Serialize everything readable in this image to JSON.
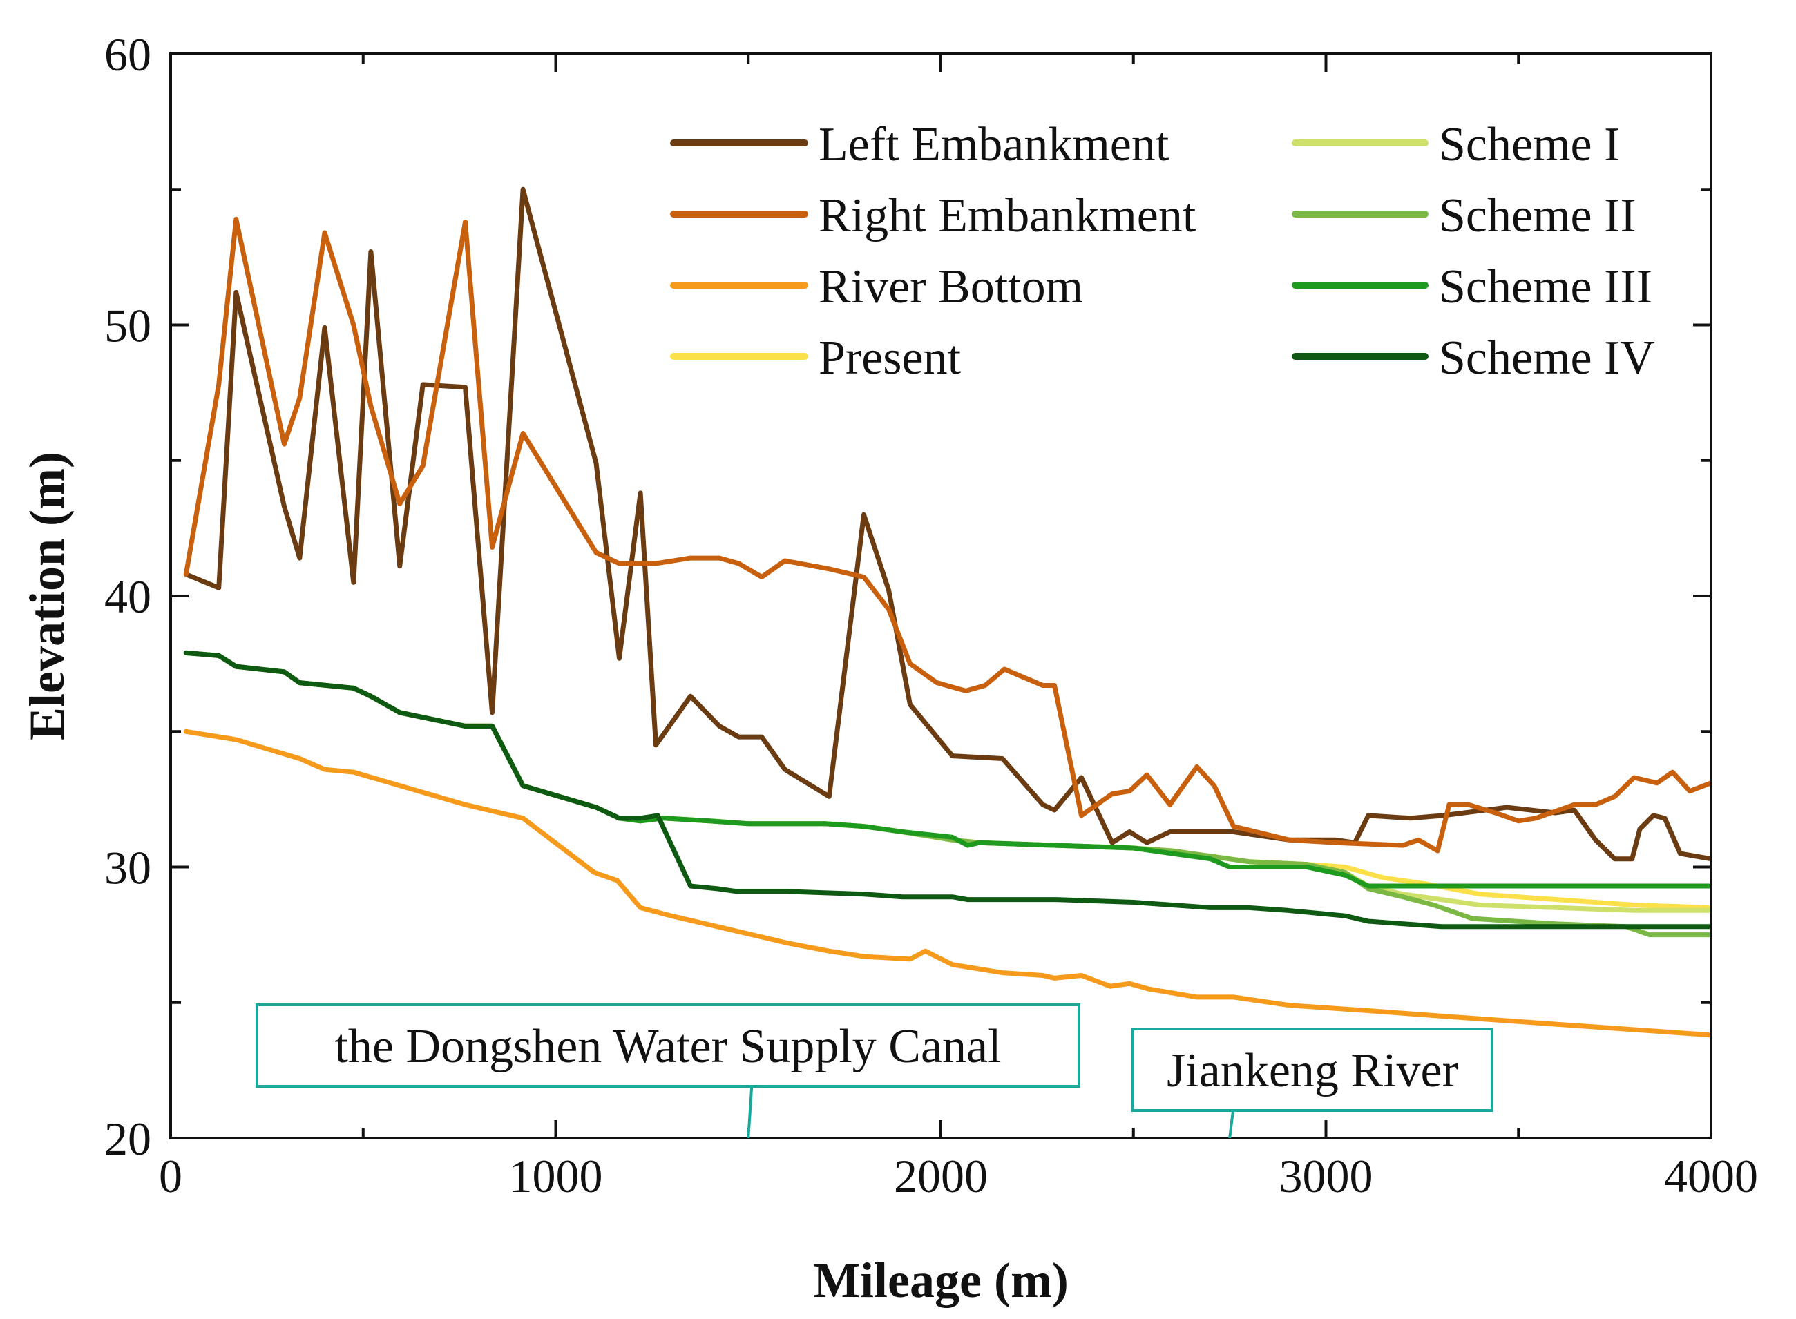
{
  "chart_data": {
    "type": "line",
    "xlabel": "Mileage (m)",
    "ylabel": "Elevation (m)",
    "xlim": [
      0,
      4000
    ],
    "ylim": [
      20,
      60
    ],
    "xticks": [
      0,
      1000,
      2000,
      3000,
      4000
    ],
    "yticks": [
      20,
      30,
      40,
      50,
      60
    ],
    "grid": false,
    "legend_position": "top-right",
    "series": [
      {
        "name": "Left Embankment",
        "color": "#6b3b12",
        "x": [
          40,
          125,
          170,
          295,
          335,
          400,
          475,
          520,
          595,
          655,
          765,
          835,
          915,
          1105,
          1165,
          1220,
          1260,
          1350,
          1425,
          1475,
          1535,
          1595,
          1710,
          1800,
          1865,
          1920,
          2030,
          2160,
          2265,
          2295,
          2365,
          2445,
          2490,
          2535,
          2595,
          2665,
          2760,
          2905,
          3025,
          3075,
          3110,
          3220,
          3305,
          3470,
          3595,
          3645,
          3700,
          3750,
          3795,
          3815,
          3850,
          3880,
          3920,
          4000
        ],
        "values": [
          40.8,
          40.3,
          51.2,
          43.3,
          41.4,
          49.9,
          40.5,
          52.7,
          41.1,
          47.8,
          47.7,
          35.7,
          55.0,
          44.9,
          37.7,
          43.8,
          34.5,
          36.3,
          35.2,
          34.8,
          34.8,
          33.6,
          32.6,
          43.0,
          40.2,
          36.0,
          34.1,
          34.0,
          32.3,
          32.1,
          33.3,
          30.9,
          31.3,
          30.9,
          31.3,
          31.3,
          31.3,
          31.0,
          31.0,
          30.9,
          31.9,
          31.8,
          31.9,
          32.2,
          32.0,
          32.1,
          31.0,
          30.3,
          30.3,
          31.4,
          31.9,
          31.8,
          30.5,
          30.3
        ]
      },
      {
        "name": "Right Embankment",
        "color": "#c8600e",
        "x": [
          40,
          125,
          170,
          295,
          335,
          400,
          475,
          520,
          595,
          655,
          765,
          835,
          915,
          1105,
          1165,
          1260,
          1350,
          1425,
          1475,
          1535,
          1595,
          1710,
          1800,
          1865,
          1920,
          1990,
          2065,
          2115,
          2165,
          2265,
          2295,
          2365,
          2445,
          2490,
          2535,
          2595,
          2665,
          2710,
          2760,
          2905,
          3025,
          3200,
          3240,
          3290,
          3320,
          3370,
          3440,
          3500,
          3545,
          3645,
          3700,
          3750,
          3800,
          3860,
          3900,
          3945,
          4000
        ],
        "values": [
          40.8,
          47.8,
          53.9,
          45.6,
          47.3,
          53.4,
          50.0,
          47.0,
          43.4,
          44.8,
          53.8,
          41.8,
          46.0,
          41.6,
          41.2,
          41.2,
          41.4,
          41.4,
          41.2,
          40.7,
          41.3,
          41.0,
          40.7,
          39.5,
          37.5,
          36.8,
          36.5,
          36.7,
          37.3,
          36.7,
          36.7,
          31.9,
          32.7,
          32.8,
          33.4,
          32.3,
          33.7,
          33.0,
          31.5,
          31.0,
          30.9,
          30.8,
          31.0,
          30.6,
          32.3,
          32.3,
          32.0,
          31.7,
          31.8,
          32.3,
          32.3,
          32.6,
          33.3,
          33.1,
          33.5,
          32.8,
          33.1
        ]
      },
      {
        "name": "River Bottom",
        "color": "#f59a1a",
        "x": [
          40,
          170,
          335,
          400,
          475,
          620,
          765,
          915,
          1100,
          1160,
          1220,
          1300,
          1420,
          1600,
          1710,
          1800,
          1920,
          1960,
          2030,
          2160,
          2265,
          2295,
          2365,
          2440,
          2490,
          2540,
          2665,
          2760,
          2905,
          3110,
          3300,
          3600,
          3800,
          4000
        ],
        "values": [
          35.0,
          34.7,
          34.0,
          33.6,
          33.5,
          32.9,
          32.3,
          31.8,
          29.8,
          29.5,
          28.5,
          28.2,
          27.8,
          27.2,
          26.9,
          26.7,
          26.6,
          26.9,
          26.4,
          26.1,
          26.0,
          25.9,
          26.0,
          25.6,
          25.7,
          25.5,
          25.2,
          25.2,
          24.9,
          24.7,
          24.5,
          24.2,
          24.0,
          23.8
        ]
      },
      {
        "name": "Present",
        "color": "#fbe04a",
        "x": [
          40,
          125,
          170,
          295,
          335,
          475,
          520,
          595,
          765,
          835,
          915,
          1105,
          1165,
          1220,
          1280,
          1400,
          1500,
          1600,
          1700,
          1800,
          1900,
          2030,
          2100,
          2300,
          2500,
          2600,
          2700,
          2800,
          2950,
          3050,
          3150,
          3250,
          3400,
          3600,
          3800,
          4000
        ],
        "values": [
          37.9,
          37.8,
          37.4,
          37.2,
          36.8,
          36.6,
          36.3,
          35.7,
          35.2,
          35.2,
          33.0,
          32.2,
          31.8,
          31.7,
          31.8,
          31.7,
          31.6,
          31.6,
          31.6,
          31.5,
          31.3,
          31.0,
          30.9,
          30.8,
          30.7,
          30.6,
          30.4,
          30.2,
          30.1,
          30.0,
          29.6,
          29.4,
          29.0,
          28.8,
          28.6,
          28.5
        ]
      },
      {
        "name": "Scheme I",
        "color": "#cfe06a",
        "x": [
          40,
          125,
          170,
          295,
          335,
          475,
          520,
          595,
          765,
          835,
          915,
          1105,
          1165,
          1220,
          1280,
          1400,
          1500,
          1600,
          1700,
          1800,
          1900,
          2030,
          2100,
          2300,
          2500,
          2600,
          2700,
          2800,
          2950,
          3050,
          3110,
          3200,
          3300,
          3400,
          3600,
          3800,
          4000
        ],
        "values": [
          37.9,
          37.8,
          37.4,
          37.2,
          36.8,
          36.6,
          36.3,
          35.7,
          35.2,
          35.2,
          33.0,
          32.2,
          31.8,
          31.7,
          31.8,
          31.7,
          31.6,
          31.6,
          31.6,
          31.5,
          31.3,
          31.0,
          30.9,
          30.8,
          30.7,
          30.6,
          30.4,
          30.2,
          30.1,
          29.8,
          29.3,
          29.0,
          28.8,
          28.6,
          28.5,
          28.4,
          28.4
        ]
      },
      {
        "name": "Scheme II",
        "color": "#7bb844",
        "x": [
          40,
          125,
          170,
          295,
          335,
          475,
          520,
          595,
          765,
          835,
          915,
          1105,
          1165,
          1220,
          1280,
          1400,
          1500,
          1600,
          1700,
          1800,
          1900,
          2030,
          2100,
          2300,
          2500,
          2600,
          2700,
          2800,
          2950,
          3050,
          3110,
          3200,
          3280,
          3380,
          3600,
          3780,
          3840,
          4000
        ],
        "values": [
          37.9,
          37.8,
          37.4,
          37.2,
          36.8,
          36.6,
          36.3,
          35.7,
          35.2,
          35.2,
          33.0,
          32.2,
          31.8,
          31.7,
          31.8,
          31.7,
          31.6,
          31.6,
          31.6,
          31.5,
          31.3,
          31.0,
          30.9,
          30.8,
          30.7,
          30.6,
          30.4,
          30.2,
          30.1,
          29.8,
          29.2,
          28.9,
          28.6,
          28.1,
          27.9,
          27.8,
          27.5,
          27.5
        ]
      },
      {
        "name": "Scheme III",
        "color": "#1e9a1e",
        "x": [
          40,
          125,
          170,
          295,
          335,
          475,
          520,
          595,
          765,
          835,
          915,
          1105,
          1165,
          1220,
          1280,
          1400,
          1500,
          1600,
          1700,
          1800,
          1900,
          2030,
          2070,
          2100,
          2300,
          2500,
          2600,
          2700,
          2750,
          2950,
          3050,
          3110,
          3300,
          3600,
          3800,
          4000
        ],
        "values": [
          37.9,
          37.8,
          37.4,
          37.2,
          36.8,
          36.6,
          36.3,
          35.7,
          35.2,
          35.2,
          33.0,
          32.2,
          31.8,
          31.7,
          31.8,
          31.7,
          31.6,
          31.6,
          31.6,
          31.5,
          31.3,
          31.1,
          30.8,
          30.9,
          30.8,
          30.7,
          30.5,
          30.3,
          30.0,
          30.0,
          29.7,
          29.3,
          29.3,
          29.3,
          29.3,
          29.3
        ]
      },
      {
        "name": "Scheme IV",
        "color": "#0f5a12",
        "x": [
          40,
          125,
          170,
          295,
          335,
          475,
          520,
          595,
          765,
          835,
          915,
          1105,
          1165,
          1220,
          1265,
          1350,
          1420,
          1470,
          1600,
          1800,
          1900,
          2030,
          2070,
          2300,
          2500,
          2700,
          2800,
          2900,
          3050,
          3110,
          3300,
          3600,
          3800,
          4000
        ],
        "values": [
          37.9,
          37.8,
          37.4,
          37.2,
          36.8,
          36.6,
          36.3,
          35.7,
          35.2,
          35.2,
          33.0,
          32.2,
          31.8,
          31.8,
          31.9,
          29.3,
          29.2,
          29.1,
          29.1,
          29.0,
          28.9,
          28.9,
          28.8,
          28.8,
          28.7,
          28.5,
          28.5,
          28.4,
          28.2,
          28.0,
          27.8,
          27.8,
          27.8,
          27.8
        ]
      }
    ],
    "annotations": [
      {
        "text": "the Dongshen Water Supply Canal",
        "pointer_x": 1500,
        "box_color": "#1aa89a"
      },
      {
        "text": "Jiankeng River",
        "pointer_x": 2750,
        "box_color": "#1aa89a"
      }
    ]
  }
}
